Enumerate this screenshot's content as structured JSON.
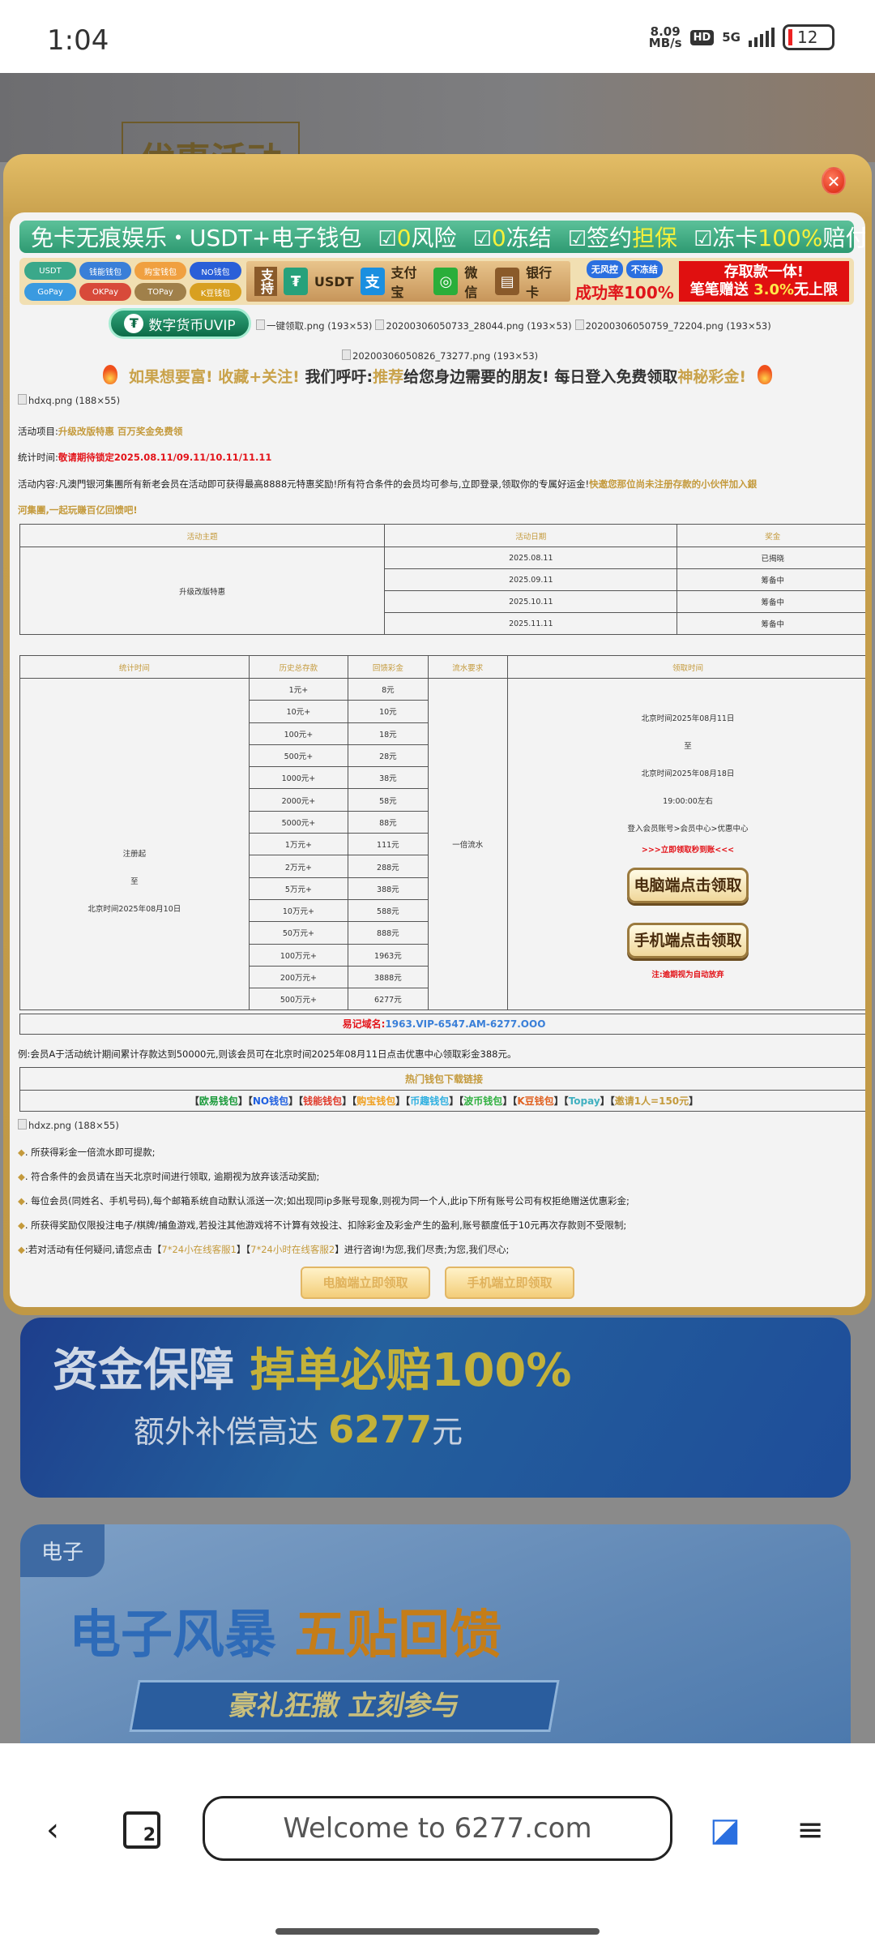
{
  "status": {
    "time": "1:04",
    "speed": "8.09",
    "speed_unit": "MB/s",
    "hd": "HD",
    "network": "5G",
    "battery": "12"
  },
  "background": {
    "top_banner_title": "优惠活动",
    "banner1": {
      "line1_a": "资金保障",
      "line1_b": "掉单必赔100%",
      "line2_a": "额外补偿高达",
      "line2_b": "6277",
      "line2_c": "元"
    },
    "banner2": {
      "tag": "电子",
      "title_a": "电子风暴",
      "title_b": "五贴回馈",
      "sub": "豪礼狂撒 立刻参与"
    }
  },
  "modal": {
    "close_icon": "close-x",
    "green_banner": {
      "title": "免卡无痕娱乐・USDT+电子钱包",
      "items": [
        {
          "a": "0",
          "b": "风险"
        },
        {
          "a": "0",
          "b": "冻结"
        },
        {
          "a": "签约",
          "b": "担保"
        },
        {
          "a": "冻卡",
          "b": "100%",
          "c": "赔付"
        }
      ]
    },
    "wallet_pills": [
      {
        "label": "USDT",
        "color": "#3aa88a"
      },
      {
        "label": "钱能钱包",
        "color": "#3a7fd8"
      },
      {
        "label": "购宝钱包",
        "color": "#f0a040"
      },
      {
        "label": "NO钱包",
        "color": "#2a5fd8"
      },
      {
        "label": "GoPay",
        "color": "#3a9ae0"
      },
      {
        "label": "OKPay",
        "color": "#d84a3a"
      },
      {
        "label": "TOPay",
        "color": "#a0804a"
      },
      {
        "label": "K豆钱包",
        "color": "#d8a020"
      }
    ],
    "support": {
      "label": "支持",
      "methods": [
        "USDT",
        "支付宝",
        "微信",
        "银行卡"
      ]
    },
    "risk": {
      "pills": [
        "无风控",
        "不冻结"
      ],
      "rate": "成功率100%"
    },
    "promo_box": {
      "line1": "存取款一体!",
      "line2a": "笔笔赠送",
      "line2b": "3.0%",
      "line2c": "无上限"
    },
    "uvip_button": "数字货币UVIP",
    "broken_images": [
      "一键领取.png (193×53)",
      "20200306050733_28044.png (193×53)",
      "20200306050759_72204.png (193×53)",
      "20200306050826_73277.png (193×53)"
    ],
    "hot_line": {
      "a": "如果想要富! 收藏+关注!",
      "b": "我们呼吁:",
      "c": "推荐",
      "d": "给您身边需要的朋友! 每日登入免费领取",
      "e": "神秘彩金!"
    },
    "hdxq_image": "hdxq.png (188×55)",
    "project": {
      "label": "活动项目:",
      "value": "升级改版特惠 百万奖金免费领"
    },
    "stat_time": {
      "label": "统计时间:",
      "value": "敬请期待锁定2025.08.11/09.11/10.11/11.11"
    },
    "content": {
      "label": "活动内容:",
      "text": "凡澳門银河集團所有新老会员在活动即可获得最高8888元特惠奖励!所有符合条件的会员均可参与,立即登录,领取你的专属好运金!",
      "highlight_1": "快邀您那位尚未注册存款的小伙伴加入銀",
      "highlight_2": "河集團,一起玩賺百亿回馈吧!"
    },
    "table1": {
      "headers": [
        "活动主题",
        "活动日期",
        "奖金"
      ],
      "theme": "升级改版特惠",
      "rows": [
        {
          "date": "2025.08.11",
          "status": "已揭晓"
        },
        {
          "date": "2025.09.11",
          "status": "筹备中"
        },
        {
          "date": "2025.10.11",
          "status": "筹备中"
        },
        {
          "date": "2025.11.11",
          "status": "筹备中"
        }
      ]
    },
    "table2": {
      "headers": [
        "统计时间",
        "历史总存款",
        "回馈彩金",
        "流水要求",
        "领取时间"
      ],
      "stat_period": [
        "注册起",
        "至",
        "北京时间2025年08月10日"
      ],
      "rows": [
        [
          "1元+",
          "8元"
        ],
        [
          "10元+",
          "10元"
        ],
        [
          "100元+",
          "18元"
        ],
        [
          "500元+",
          "28元"
        ],
        [
          "1000元+",
          "38元"
        ],
        [
          "2000元+",
          "58元"
        ],
        [
          "5000元+",
          "88元"
        ],
        [
          "1万元+",
          "111元"
        ],
        [
          "2万元+",
          "288元"
        ],
        [
          "5万元+",
          "388元"
        ],
        [
          "10万元+",
          "588元"
        ],
        [
          "50万元+",
          "888元"
        ],
        [
          "100万元+",
          "1963元"
        ],
        [
          "200万元+",
          "3888元"
        ],
        [
          "500万元+",
          "6277元"
        ]
      ],
      "flow": "一倍流水",
      "claim": [
        "北京时间2025年08月11日",
        "至",
        "北京时间2025年08月18日",
        "19:00:00左右",
        "登入会员账号>会员中心>优惠中心"
      ],
      "claim_now": ">>>立即领取秒到账<<<",
      "pc_button": "电脑端点击领取",
      "mobile_button": "手机端点击领取",
      "note": "注:逾期视为自动放弃"
    },
    "domain": {
      "label": "易记域名:",
      "value": "1963.VIP-6547.AM-6277.OOO"
    },
    "example": "例:会员A于活动统计期间累计存款达到50000元,则该会员可在北京时间2025年08月11日点击优惠中心领取彩金388元。",
    "wallet_links": {
      "title": "热门钱包下载链接",
      "links": [
        {
          "label": "欧易钱包",
          "color": "#1a9a3a"
        },
        {
          "label": "NO钱包",
          "color": "#2060e0"
        },
        {
          "label": "钱能钱包",
          "color": "#e03a2a"
        },
        {
          "label": "购宝钱包",
          "color": "#f0a020"
        },
        {
          "label": "币趣钱包",
          "color": "#30b0e0"
        },
        {
          "label": "波币钱包",
          "color": "#30b040"
        },
        {
          "label": "K豆钱包",
          "color": "#e06020"
        },
        {
          "label": "Topay",
          "color": "#40b0c0"
        },
        {
          "label": "邀请1人=150元",
          "color": "#c49a3c"
        }
      ]
    },
    "hdxz_image": "hdxz.png (188×55)",
    "rules": [
      "所获得彩金一倍流水即可提款;",
      "符合条件的会员请在当天北京时间进行领取, 逾期视为放弃该活动奖励;",
      "每位会员(同姓名、手机号码),每个邮箱系统自动默认派送一次;如出现同ip多账号现象,则视为同一个人,此ip下所有账号公司有权拒绝赠送优惠彩金;",
      "所获得奖励仅限投注电子/棋牌/捕鱼游戏,若投注其他游戏将不计算有效投注、扣除彩金及彩金产生的盈利,账号额度低于10元再次存款则不受限制;"
    ],
    "contact": {
      "a": ":若对活动有任何疑问,请您点击【",
      "link1": "7*24小在线客服1",
      "b": "】【",
      "link2": "7*24小时在线客服2",
      "c": "】进行咨询!为您,我们尽责;为您,我们尽心;"
    },
    "claim_images": [
      "电脑端立即领取",
      "手机端立即领取"
    ]
  },
  "nav": {
    "url": "Welcome to 6277.com",
    "tab_count": "2"
  }
}
